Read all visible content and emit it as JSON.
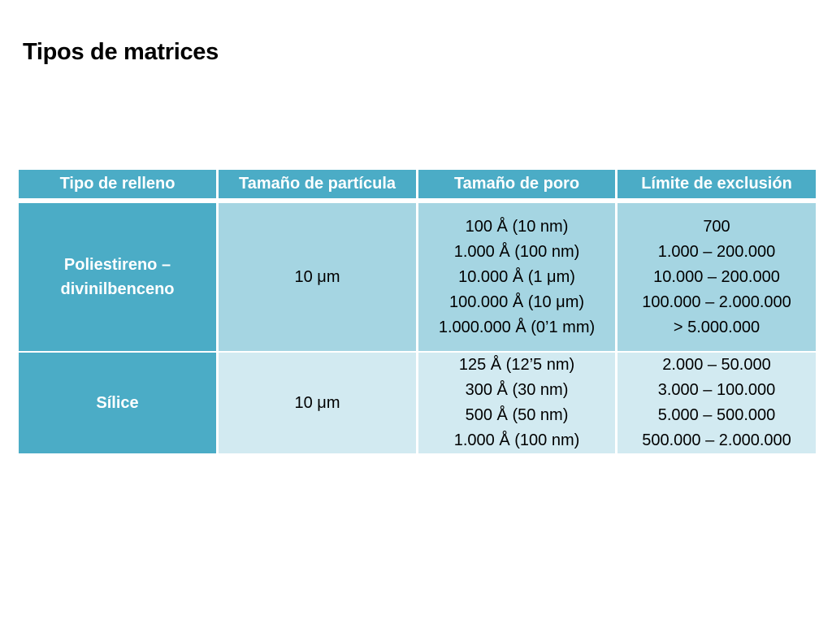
{
  "slide": {
    "title": "Tipos de matrices"
  },
  "table": {
    "headers": [
      "Tipo de relleno",
      "Tamaño de partícula",
      "Tamaño de poro",
      "Límite de exclusión"
    ],
    "rows": [
      {
        "type_lines": [
          "Poliestireno –",
          "divinilbenceno"
        ],
        "particle_size": "10 μm",
        "pore_sizes": [
          "100 Å (10 nm)",
          "1.000 Å (100 nm)",
          "10.000 Å (1 μm)",
          "100.000 Å (10 μm)",
          "1.000.000 Å (0’1 mm)"
        ],
        "exclusion_limits": [
          "700",
          "1.000 – 200.000",
          "10.000 – 200.000",
          "100.000 – 2.000.000",
          "> 5.000.000"
        ]
      },
      {
        "type_lines": [
          "Sílice"
        ],
        "particle_size": "10 μm",
        "pore_sizes": [
          "125 Å (12’5 nm)",
          "300 Å (30 nm)",
          "500 Å (50 nm)",
          "1.000 Å (100 nm)"
        ],
        "exclusion_limits": [
          "2.000 – 50.000",
          "3.000 – 100.000",
          "5.000 – 500.000",
          "500.000 – 2.000.000"
        ]
      }
    ]
  },
  "colors": {
    "header_background": "#4bacc6",
    "row_1_background": "#a5d5e2",
    "row_2_background": "#d2eaf1",
    "header_text": "#ffffff"
  }
}
